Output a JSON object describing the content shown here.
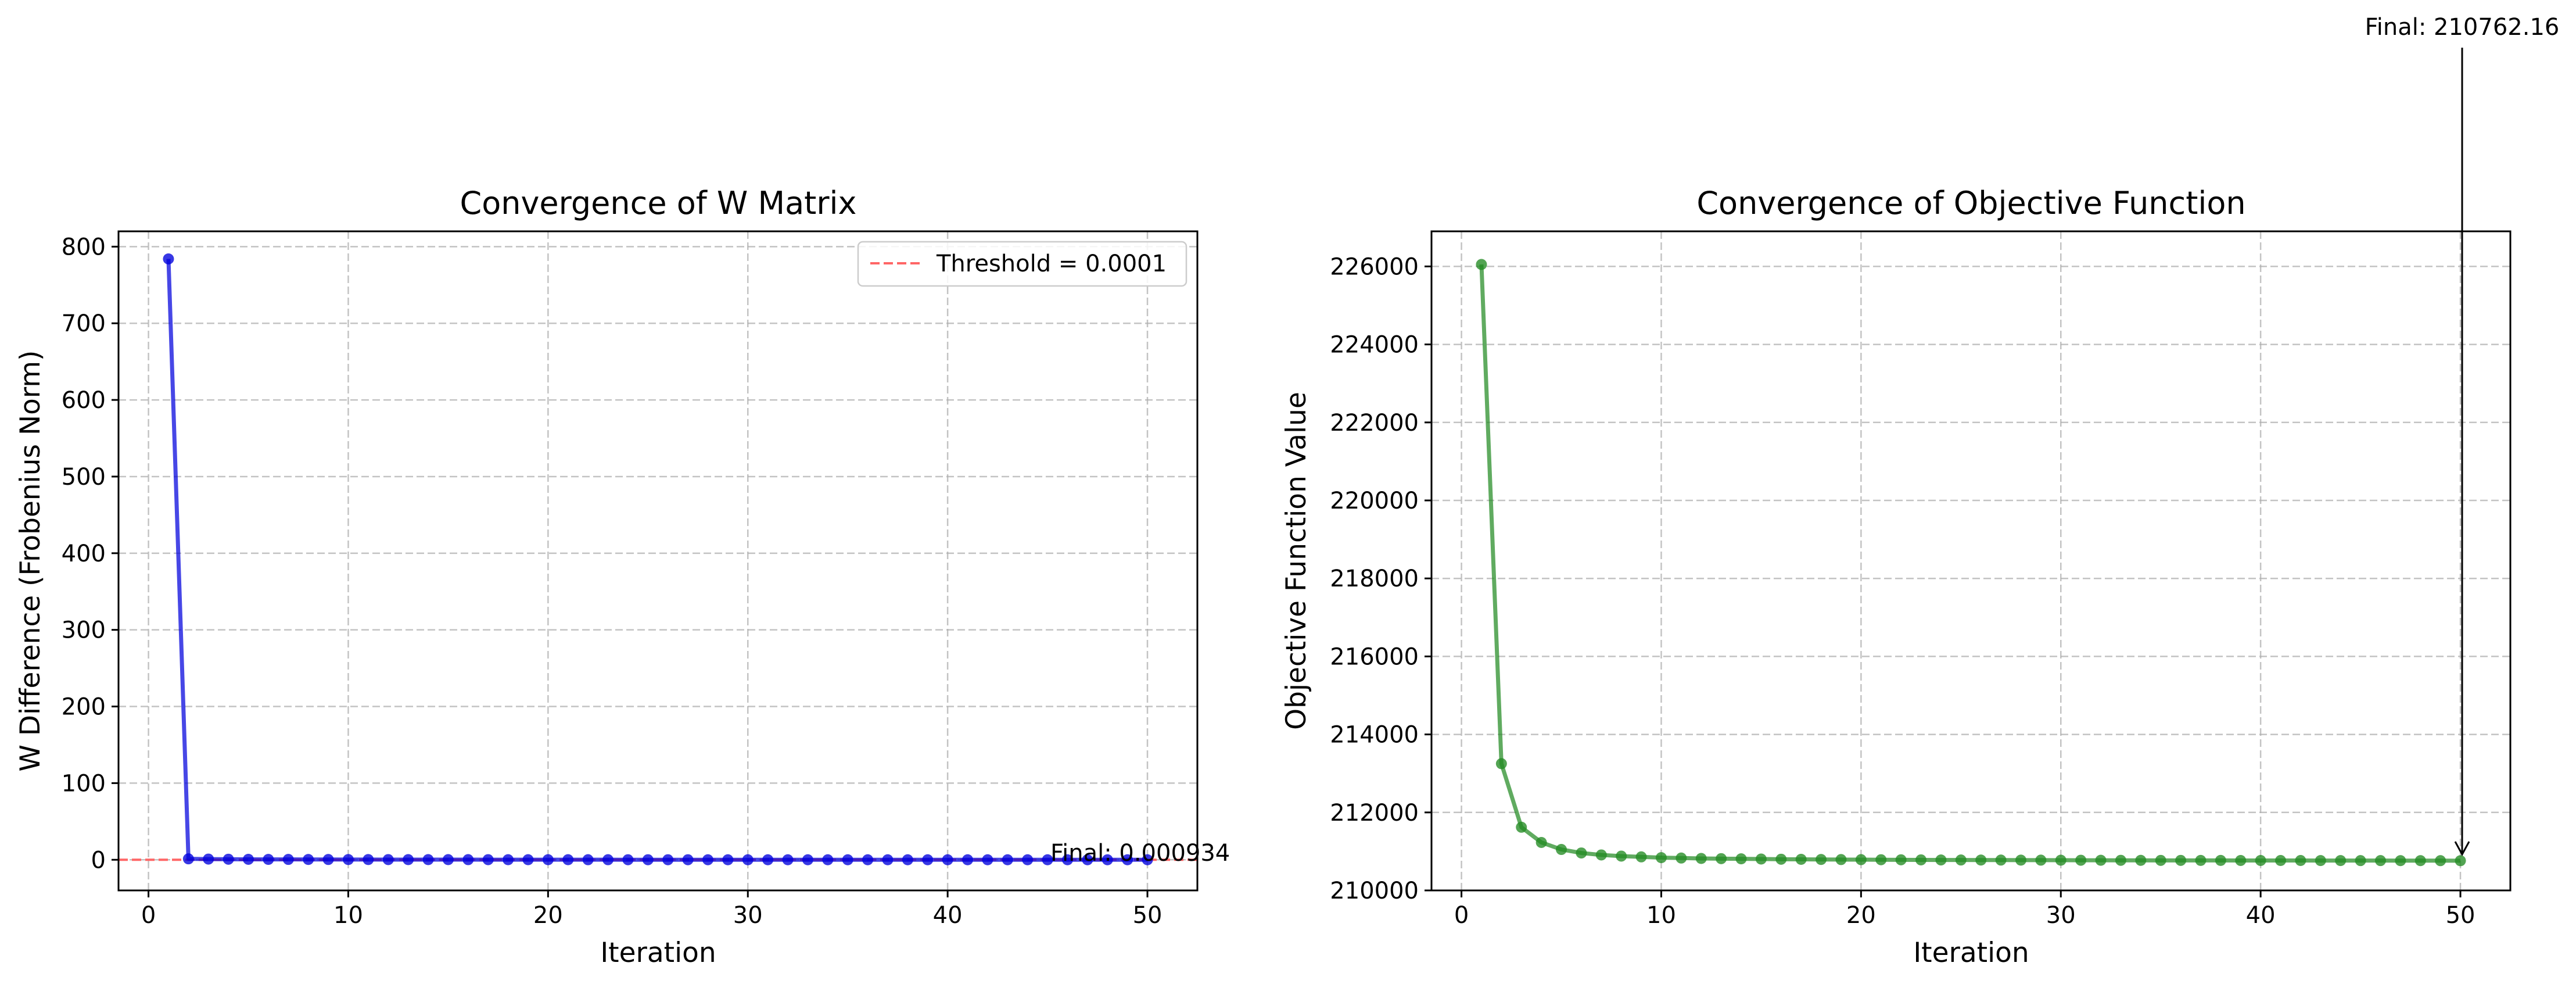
{
  "chart_data": [
    {
      "type": "line",
      "title": "Convergence of W Matrix",
      "xlabel": "Iteration",
      "ylabel": "W Difference (Frobenius Norm)",
      "xlim": [
        -1.5,
        52.5
      ],
      "ylim": [
        -40,
        820
      ],
      "xticks": [
        0,
        10,
        20,
        30,
        40,
        50
      ],
      "yticks": [
        0,
        100,
        200,
        300,
        400,
        500,
        600,
        700,
        800
      ],
      "grid": true,
      "legend_position": "upper right",
      "series": [
        {
          "color": "#0000dd",
          "marker": "circle",
          "x": [
            1,
            2,
            3,
            4,
            5,
            6,
            7,
            8,
            9,
            10,
            11,
            12,
            13,
            14,
            15,
            16,
            17,
            18,
            19,
            20,
            21,
            22,
            23,
            24,
            25,
            26,
            27,
            28,
            29,
            30,
            31,
            32,
            33,
            34,
            35,
            36,
            37,
            38,
            39,
            40,
            41,
            42,
            43,
            44,
            45,
            46,
            47,
            48,
            49,
            50
          ],
          "y": [
            784,
            1.2,
            0.9,
            0.7,
            0.6,
            0.5,
            0.45,
            0.4,
            0.35,
            0.3,
            0.27,
            0.24,
            0.21,
            0.19,
            0.17,
            0.15,
            0.13,
            0.12,
            0.1,
            0.09,
            0.08,
            0.07,
            0.06,
            0.05,
            0.045,
            0.04,
            0.035,
            0.03,
            0.026,
            0.022,
            0.019,
            0.016,
            0.014,
            0.012,
            0.01,
            0.009,
            0.008,
            0.007,
            0.006,
            0.005,
            0.0045,
            0.004,
            0.0035,
            0.003,
            0.0025,
            0.002,
            0.0017,
            0.0014,
            0.0011,
            0.000934
          ]
        }
      ],
      "threshold": {
        "label": "Threshold = 0.0001",
        "value": 0.0001,
        "color": "#ff6666"
      },
      "annotation": {
        "text": "Final: 0.000934",
        "x": 50,
        "y": 0.000934
      }
    },
    {
      "type": "line",
      "title": "Convergence of Objective Function",
      "xlabel": "Iteration",
      "ylabel": "Objective Function Value",
      "xlim": [
        -1.5,
        52.5
      ],
      "ylim": [
        210000,
        226900
      ],
      "xticks": [
        0,
        10,
        20,
        30,
        40,
        50
      ],
      "yticks": [
        210000,
        212000,
        214000,
        216000,
        218000,
        220000,
        222000,
        224000,
        226000
      ],
      "grid": true,
      "series": [
        {
          "color": "#228b22",
          "marker": "circle",
          "x": [
            1,
            2,
            3,
            4,
            5,
            6,
            7,
            8,
            9,
            10,
            11,
            12,
            13,
            14,
            15,
            16,
            17,
            18,
            19,
            20,
            21,
            22,
            23,
            24,
            25,
            26,
            27,
            28,
            29,
            30,
            31,
            32,
            33,
            34,
            35,
            36,
            37,
            38,
            39,
            40,
            41,
            42,
            43,
            44,
            45,
            46,
            47,
            48,
            49,
            50
          ],
          "y": [
            226050,
            213250,
            211620,
            211230,
            211050,
            210960,
            210910,
            210880,
            210860,
            210840,
            210830,
            210820,
            210815,
            210810,
            210805,
            210800,
            210797,
            210794,
            210791,
            210789,
            210787,
            210785,
            210783,
            210781,
            210780,
            210779,
            210778,
            210777,
            210776,
            210775,
            210774,
            210773,
            210772,
            210771,
            210770,
            210770,
            210769,
            210769,
            210768,
            210768,
            210767,
            210767,
            210766,
            210766,
            210765,
            210765,
            210764,
            210764,
            210763,
            210762.16
          ]
        }
      ],
      "annotation": {
        "text": "Final: 210762.16",
        "x": 50,
        "y": 210762.16
      }
    }
  ]
}
